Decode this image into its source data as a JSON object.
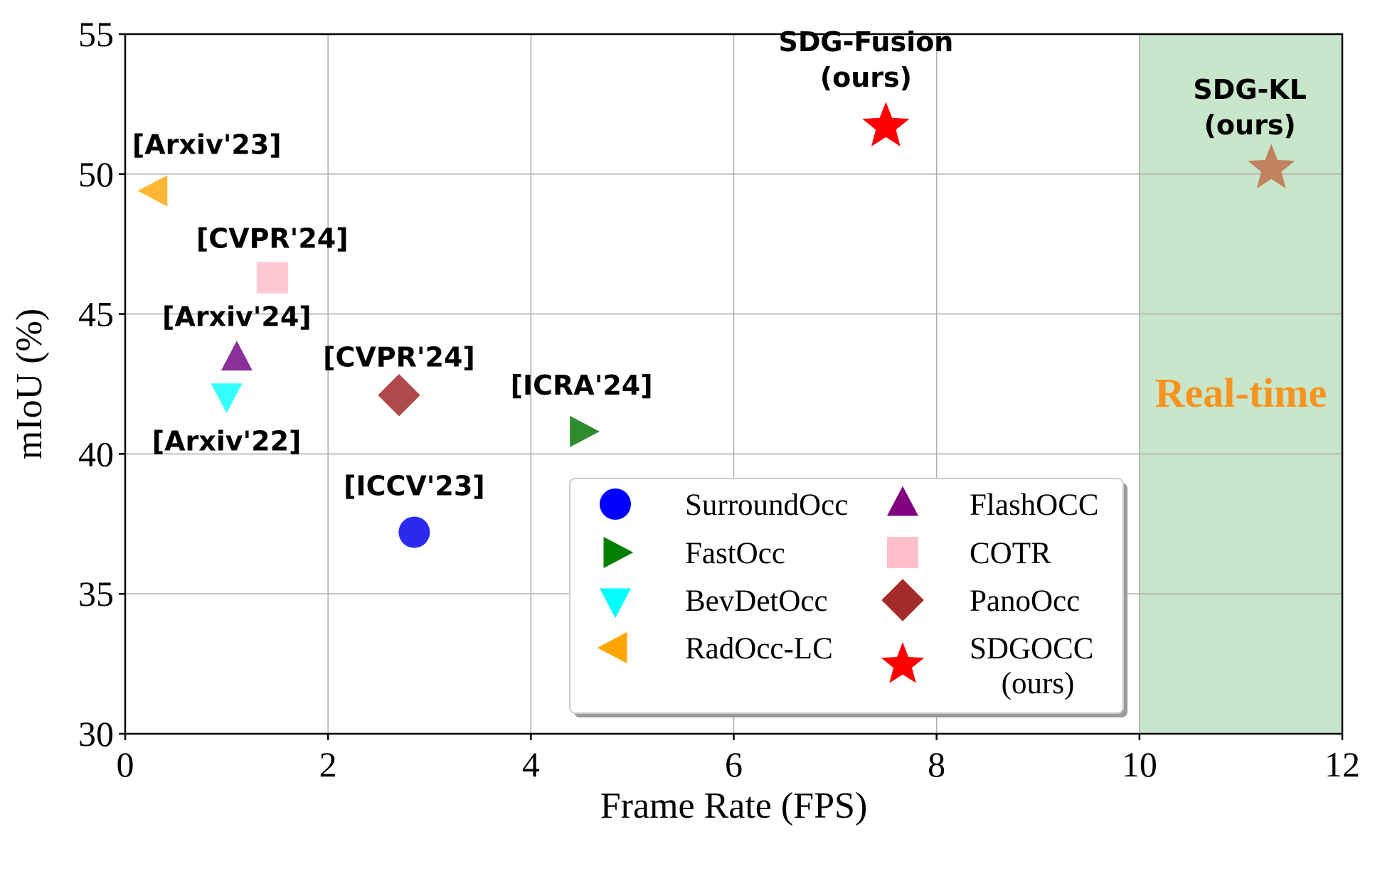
{
  "chart_data": {
    "type": "scatter",
    "title": "",
    "xlabel": "Frame Rate (FPS)",
    "ylabel": "mIoU (%)",
    "xlim": [
      0,
      12
    ],
    "ylim": [
      30,
      55
    ],
    "x_ticks": [
      0,
      2,
      4,
      6,
      8,
      10,
      12
    ],
    "y_ticks": [
      30,
      35,
      40,
      45,
      50,
      55
    ],
    "grid": true,
    "realtime_region": {
      "from": 10,
      "to": 12,
      "label": "Real-time",
      "fill": "#c8e6c9",
      "label_color": "#f7931e"
    },
    "series": [
      {
        "name": "SurroundOcc",
        "marker": "circle",
        "color": "#2b2bf0",
        "legend_color": "#0000ff",
        "x": 2.85,
        "y": 37.2,
        "label": "[ICCV'23]"
      },
      {
        "name": "FastOcc",
        "marker": "triangle-right",
        "color": "#2e8b2e",
        "legend_color": "#007f00",
        "x": 4.5,
        "y": 40.8,
        "label": "[ICRA'24]"
      },
      {
        "name": "BevDetOcc",
        "marker": "triangle-down",
        "color": "#33ffff",
        "legend_color": "#00ffff",
        "x": 1.0,
        "y": 42.1,
        "label": "[Arxiv'22]"
      },
      {
        "name": "RadOcc-LC",
        "marker": "triangle-left",
        "color": "#ffb733",
        "legend_color": "#ffa500",
        "x": 0.3,
        "y": 49.4,
        "label": "[Arxiv'23]"
      },
      {
        "name": "FlashOCC",
        "marker": "triangle-up",
        "color": "#8b2f9a",
        "legend_color": "#800080",
        "x": 1.1,
        "y": 43.4,
        "label": "[Arxiv'24]"
      },
      {
        "name": "COTR",
        "marker": "square",
        "color": "#ffc8d2",
        "legend_color": "#ffc0cb",
        "x": 1.45,
        "y": 46.3,
        "label": "[CVPR'24]"
      },
      {
        "name": "PanoOcc",
        "marker": "diamond",
        "color": "#b04a4a",
        "legend_color": "#a52a2a",
        "x": 2.7,
        "y": 42.1,
        "label": "[CVPR'24]"
      },
      {
        "name": "SDG-Fusion",
        "marker": "star",
        "color": "#ff0000",
        "x": 7.5,
        "y": 51.7,
        "label": "SDG-Fusion",
        "label2": "(ours)"
      },
      {
        "name": "SDG-KL",
        "marker": "star",
        "color": "#c0825f",
        "x": 11.3,
        "y": 50.2,
        "label": "SDG-KL",
        "label2": "(ours)"
      }
    ],
    "legend": {
      "position": "lower-right",
      "entries": [
        {
          "name": "SurroundOcc",
          "marker": "circle",
          "color": "#0000ff"
        },
        {
          "name": "FastOcc",
          "marker": "triangle-right",
          "color": "#007f00"
        },
        {
          "name": "BevDetOcc",
          "marker": "triangle-down",
          "color": "#00ffff"
        },
        {
          "name": "RadOcc-LC",
          "marker": "triangle-left",
          "color": "#ffa500"
        },
        {
          "name": "FlashOCC",
          "marker": "triangle-up",
          "color": "#800080"
        },
        {
          "name": "COTR",
          "marker": "square",
          "color": "#ffc0cb"
        },
        {
          "name": "PanoOcc",
          "marker": "diamond",
          "color": "#a52a2a"
        },
        {
          "name": "SDGOCC",
          "name2": "(ours)",
          "marker": "star",
          "color": "#ff0000"
        }
      ]
    }
  }
}
